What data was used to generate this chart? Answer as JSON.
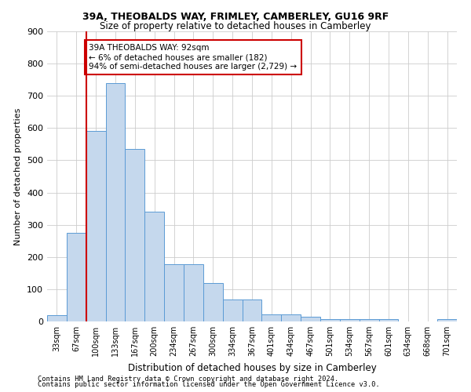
{
  "title1": "39A, THEOBALDS WAY, FRIMLEY, CAMBERLEY, GU16 9RF",
  "title2": "Size of property relative to detached houses in Camberley",
  "xlabel": "Distribution of detached houses by size in Camberley",
  "ylabel": "Number of detached properties",
  "footer1": "Contains HM Land Registry data © Crown copyright and database right 2024.",
  "footer2": "Contains public sector information licensed under the Open Government Licence v3.0.",
  "annotation_line1": "39A THEOBALDS WAY: 92sqm",
  "annotation_line2": "← 6% of detached houses are smaller (182)",
  "annotation_line3": "94% of semi-detached houses are larger (2,729) →",
  "bar_labels": [
    "33sqm",
    "67sqm",
    "100sqm",
    "133sqm",
    "167sqm",
    "200sqm",
    "234sqm",
    "267sqm",
    "300sqm",
    "334sqm",
    "367sqm",
    "401sqm",
    "434sqm",
    "467sqm",
    "501sqm",
    "534sqm",
    "567sqm",
    "601sqm",
    "634sqm",
    "668sqm",
    "701sqm"
  ],
  "bar_values": [
    20,
    275,
    590,
    740,
    535,
    340,
    178,
    178,
    118,
    68,
    68,
    22,
    22,
    14,
    7,
    7,
    8,
    8,
    0,
    0,
    8
  ],
  "bar_color": "#c5d8ed",
  "bar_edge_color": "#5b9bd5",
  "vline_color": "#cc0000",
  "vline_x_index": 1,
  "annotation_box_color": "#cc0000",
  "grid_color": "#cccccc",
  "ylim": [
    0,
    900
  ],
  "yticks": [
    0,
    100,
    200,
    300,
    400,
    500,
    600,
    700,
    800,
    900
  ],
  "background_color": "#ffffff"
}
